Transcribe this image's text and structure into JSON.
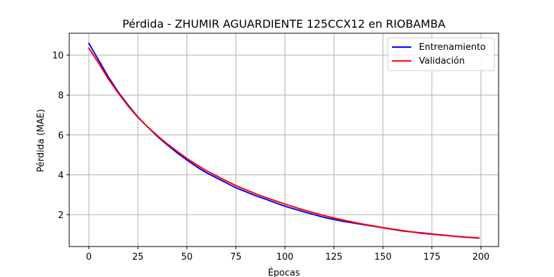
{
  "chart_data": {
    "type": "line",
    "title": "Pérdida - ZHUMIR AGUARDIENTE 125CCX12 en RIOBAMBA",
    "xlabel": "Épocas",
    "ylabel": "Pérdida (MAE)",
    "xlim": [
      -10,
      209
    ],
    "ylim": [
      0.4,
      11.1
    ],
    "xticks": [
      0,
      25,
      50,
      75,
      100,
      125,
      150,
      175,
      200
    ],
    "yticks": [
      2,
      4,
      6,
      8,
      10
    ],
    "grid": true,
    "legend_position": "top-right",
    "series": [
      {
        "name": "Entrenamiento",
        "color": "#0000ff",
        "x": [
          0,
          2,
          5,
          10,
          15,
          20,
          25,
          30,
          35,
          40,
          45,
          50,
          55,
          60,
          65,
          70,
          75,
          80,
          85,
          90,
          95,
          100,
          110,
          120,
          130,
          140,
          150,
          160,
          170,
          180,
          190,
          199
        ],
        "y": [
          10.6,
          10.25,
          9.75,
          8.9,
          8.15,
          7.5,
          6.9,
          6.4,
          5.92,
          5.5,
          5.1,
          4.74,
          4.4,
          4.1,
          3.85,
          3.6,
          3.35,
          3.15,
          2.95,
          2.78,
          2.6,
          2.42,
          2.13,
          1.86,
          1.66,
          1.5,
          1.34,
          1.18,
          1.08,
          0.98,
          0.88,
          0.82
        ]
      },
      {
        "name": "Validación",
        "color": "#ff0000",
        "x": [
          0,
          2,
          5,
          10,
          15,
          20,
          25,
          30,
          35,
          40,
          45,
          50,
          55,
          60,
          65,
          70,
          75,
          80,
          85,
          90,
          95,
          100,
          110,
          120,
          130,
          140,
          150,
          160,
          170,
          180,
          190,
          199
        ],
        "y": [
          10.35,
          10.05,
          9.6,
          8.8,
          8.1,
          7.45,
          6.88,
          6.4,
          5.96,
          5.55,
          5.18,
          4.82,
          4.5,
          4.2,
          3.95,
          3.7,
          3.46,
          3.25,
          3.05,
          2.87,
          2.7,
          2.53,
          2.22,
          1.95,
          1.72,
          1.52,
          1.35,
          1.2,
          1.06,
          0.97,
          0.89,
          0.83
        ]
      }
    ]
  }
}
